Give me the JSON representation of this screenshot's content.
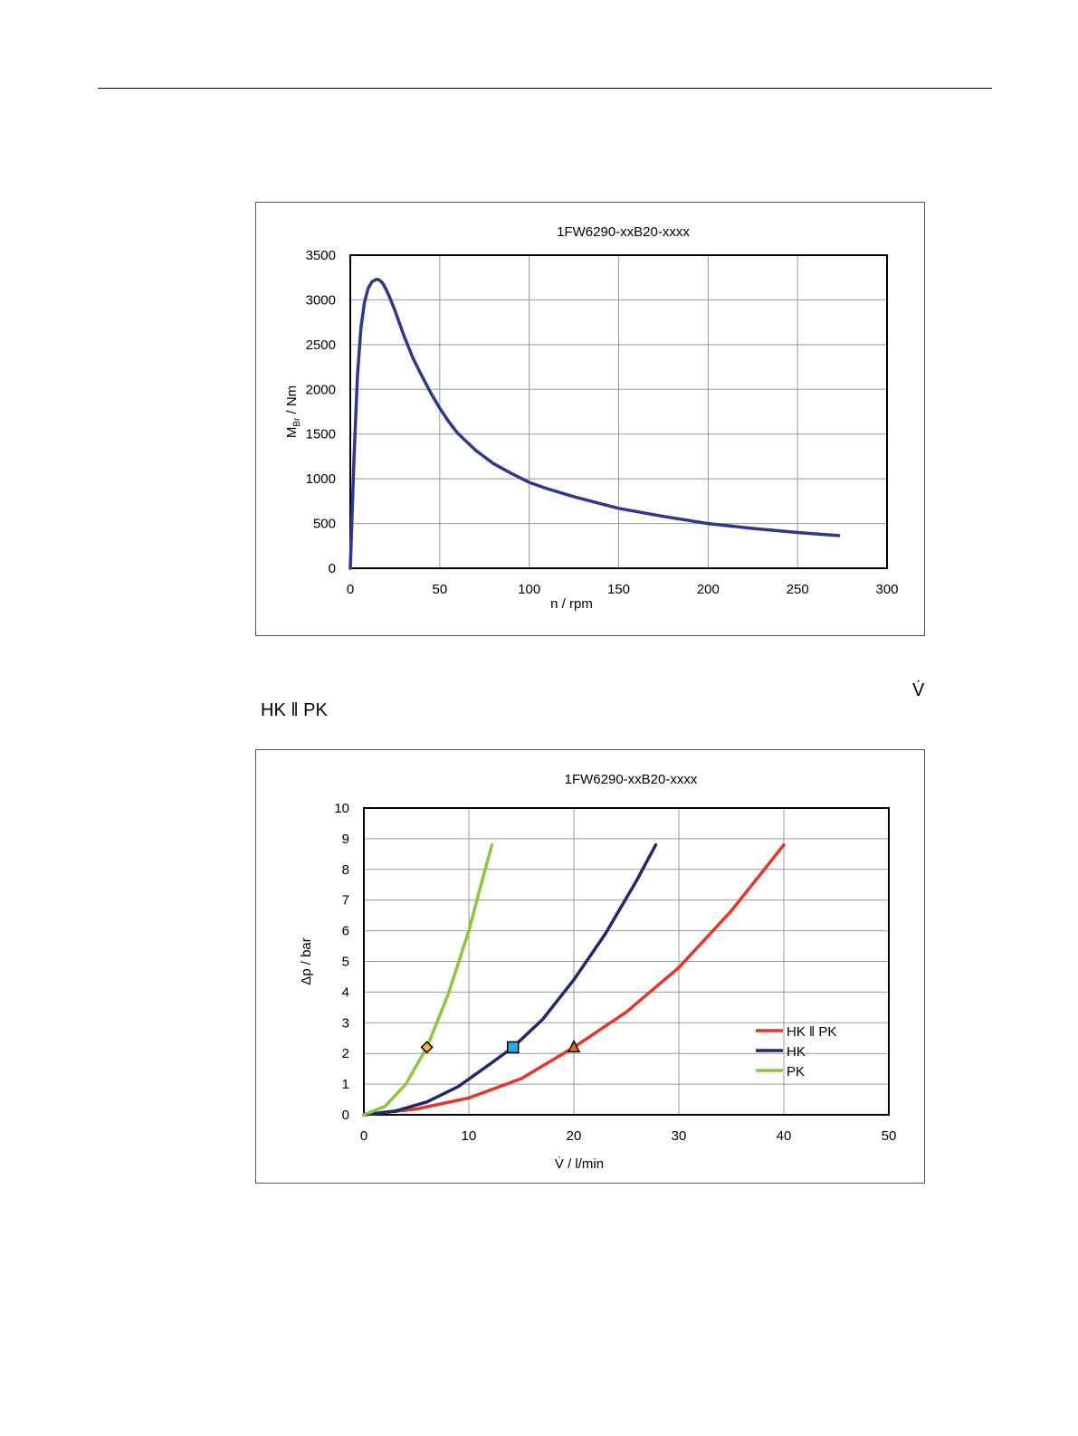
{
  "page": {
    "vdot_symbol": "V̇",
    "section_label": "HK ‖ PK"
  },
  "chart_data": [
    {
      "type": "line",
      "title": "1FW6290-xxB20-xxxx",
      "xlabel": "n / rpm",
      "ylabel": "M",
      "ylabel_sub": "Br",
      "ylabel_suffix": " / Nm",
      "xlim": [
        0,
        300
      ],
      "ylim": [
        0,
        3500
      ],
      "xticks": [
        0,
        50,
        100,
        150,
        200,
        250,
        300
      ],
      "yticks": [
        0,
        500,
        1000,
        1500,
        2000,
        2500,
        3000,
        3500
      ],
      "grid": true,
      "series": [
        {
          "color": "#2b3990",
          "x": [
            0,
            2,
            4,
            6,
            8,
            10,
            12,
            14,
            15,
            16,
            18,
            20,
            22,
            25,
            30,
            35,
            40,
            45,
            50,
            55,
            60,
            70,
            80,
            90,
            100,
            110,
            125,
            150,
            175,
            200,
            225,
            250,
            273
          ],
          "y": [
            0,
            1200,
            2150,
            2700,
            2980,
            3130,
            3200,
            3225,
            3230,
            3225,
            3190,
            3120,
            3030,
            2880,
            2600,
            2350,
            2150,
            1960,
            1790,
            1640,
            1510,
            1320,
            1170,
            1060,
            960,
            890,
            800,
            670,
            580,
            500,
            445,
            400,
            365
          ]
        }
      ]
    },
    {
      "type": "line",
      "title": "1FW6290-xxB20-xxxx",
      "xlabel": "V̇ / l/min",
      "ylabel": "Δp / bar",
      "xlim": [
        0,
        50
      ],
      "ylim": [
        0,
        10
      ],
      "xticks": [
        0,
        10,
        20,
        30,
        40,
        50
      ],
      "yticks": [
        0,
        1,
        2,
        3,
        4,
        5,
        6,
        7,
        8,
        9,
        10
      ],
      "grid": true,
      "legend_position": "right",
      "series": [
        {
          "name": "HK ‖ PK",
          "color": "#e8352a",
          "x": [
            0,
            5,
            10,
            15,
            20,
            25,
            30,
            35,
            40
          ],
          "y": [
            0,
            0.19,
            0.55,
            1.18,
            2.2,
            3.35,
            4.8,
            6.65,
            8.8
          ],
          "marker": {
            "shape": "triangle",
            "x": 20,
            "y": 2.2,
            "fill": "#e8662a"
          }
        },
        {
          "name": "HK",
          "color": "#1f2a6b",
          "x": [
            0,
            3,
            6,
            9,
            12,
            14.2,
            17,
            20,
            23,
            26,
            27.8
          ],
          "y": [
            0,
            0.12,
            0.42,
            0.92,
            1.65,
            2.2,
            3.1,
            4.4,
            5.9,
            7.65,
            8.8
          ],
          "marker": {
            "shape": "square",
            "x": 14.2,
            "y": 2.2,
            "fill": "#29abe2"
          }
        },
        {
          "name": "PK",
          "color": "#8cc63f",
          "x": [
            0,
            2,
            4,
            6,
            8,
            10,
            11,
            12.2
          ],
          "y": [
            0,
            0.27,
            1.0,
            2.2,
            3.9,
            6.0,
            7.3,
            8.8
          ],
          "marker": {
            "shape": "diamond",
            "x": 6,
            "y": 2.2,
            "fill": "#f7b731"
          }
        }
      ]
    }
  ]
}
